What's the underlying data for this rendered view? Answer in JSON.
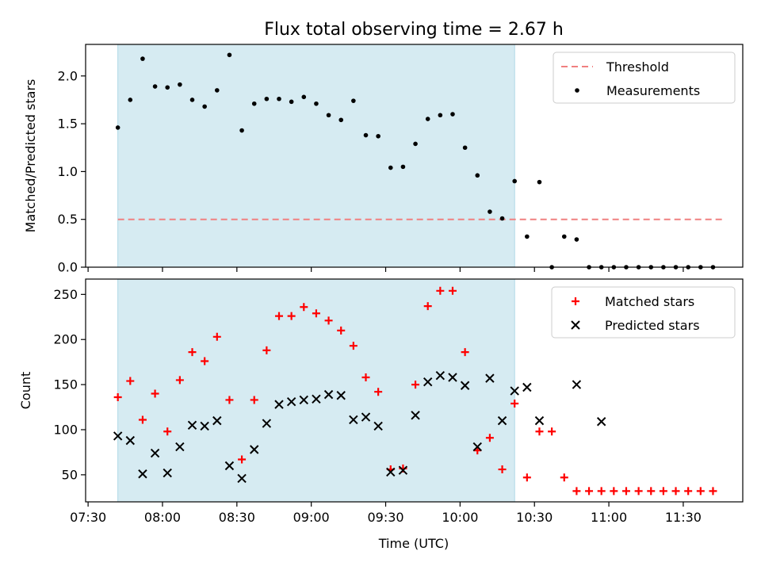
{
  "title": "Flux total observing time = 2.67 h",
  "xlabel": "Time (UTC)",
  "x_ticks": [
    "07:30",
    "08:00",
    "08:30",
    "09:00",
    "09:30",
    "10:00",
    "10:30",
    "11:00",
    "11:30"
  ],
  "colors": {
    "highlight": "#add8e6",
    "threshold": "#f08080",
    "matched": "#ff0000",
    "predicted": "#000000",
    "measurements": "#000000"
  },
  "chart_data": [
    {
      "type": "scatter",
      "name": "ratio-panel",
      "ylabel": "Matched/Predicted stars",
      "ylim": [
        0,
        2.33
      ],
      "y_ticks": [
        0.0,
        0.5,
        1.0,
        1.5,
        2.0
      ],
      "y_tick_labels": [
        "0.0",
        "0.5",
        "1.0",
        "1.5",
        "2.0"
      ],
      "xlim": [
        "07:29",
        "11:54"
      ],
      "highlight_span": [
        "07:42",
        "10:22"
      ],
      "threshold": {
        "name": "Threshold",
        "y": 0.5,
        "x": [
          "07:42",
          "11:46"
        ]
      },
      "series": [
        {
          "name": "Measurements",
          "x": [
            "07:42",
            "07:47",
            "07:52",
            "07:57",
            "08:02",
            "08:07",
            "08:12",
            "08:17",
            "08:22",
            "08:27",
            "08:32",
            "08:37",
            "08:42",
            "08:47",
            "08:52",
            "08:57",
            "09:02",
            "09:07",
            "09:12",
            "09:17",
            "09:22",
            "09:27",
            "09:32",
            "09:37",
            "09:42",
            "09:47",
            "09:52",
            "09:57",
            "10:02",
            "10:07",
            "10:12",
            "10:17",
            "10:22",
            "10:27",
            "10:32",
            "10:37",
            "10:42",
            "10:47",
            "10:52",
            "10:57",
            "11:02",
            "11:07",
            "11:12",
            "11:17",
            "11:22",
            "11:27",
            "11:32",
            "11:37",
            "11:42"
          ],
          "y": [
            1.46,
            1.75,
            2.18,
            1.89,
            1.88,
            1.91,
            1.75,
            1.68,
            1.85,
            2.22,
            1.43,
            1.71,
            1.76,
            1.76,
            1.73,
            1.78,
            1.71,
            1.59,
            1.54,
            1.74,
            1.38,
            1.37,
            1.04,
            1.05,
            1.29,
            1.55,
            1.59,
            1.6,
            1.25,
            0.96,
            0.58,
            0.51,
            0.9,
            0.32,
            0.89,
            0.0,
            0.32,
            0.29,
            0.0,
            0.0,
            0.0,
            0.0,
            0.0,
            0.0,
            0.0,
            0.0,
            0.0,
            0.0,
            0.0
          ]
        }
      ],
      "legend": [
        "Threshold",
        "Measurements"
      ],
      "legend_position": "top-right"
    },
    {
      "type": "scatter",
      "name": "count-panel",
      "ylabel": "Count",
      "ylim": [
        20,
        267
      ],
      "y_ticks": [
        50,
        100,
        150,
        200,
        250
      ],
      "y_tick_labels": [
        "50",
        "100",
        "150",
        "200",
        "250"
      ],
      "xlim": [
        "07:29",
        "11:54"
      ],
      "highlight_span": [
        "07:42",
        "10:22"
      ],
      "series": [
        {
          "name": "Matched stars",
          "x": [
            "07:42",
            "07:47",
            "07:52",
            "07:57",
            "08:02",
            "08:07",
            "08:12",
            "08:17",
            "08:22",
            "08:27",
            "08:32",
            "08:37",
            "08:42",
            "08:47",
            "08:52",
            "08:57",
            "09:02",
            "09:07",
            "09:12",
            "09:17",
            "09:22",
            "09:27",
            "09:32",
            "09:37",
            "09:42",
            "09:47",
            "09:52",
            "09:57",
            "10:02",
            "10:07",
            "10:12",
            "10:17",
            "10:22",
            "10:27",
            "10:32",
            "10:37",
            "10:42",
            "10:47",
            "10:52",
            "10:57",
            "11:02",
            "11:07",
            "11:12",
            "11:17",
            "11:22",
            "11:27",
            "11:32",
            "11:37",
            "11:42"
          ],
          "y": [
            136,
            154,
            111,
            140,
            98,
            155,
            186,
            176,
            203,
            133,
            67,
            133,
            188,
            226,
            226,
            236,
            229,
            221,
            210,
            193,
            158,
            142,
            56,
            57,
            150,
            237,
            254,
            254,
            186,
            77,
            91,
            56,
            129,
            47,
            98,
            98,
            47,
            32,
            32,
            32,
            32,
            32,
            32,
            32,
            32,
            32,
            32,
            32,
            32
          ]
        },
        {
          "name": "Predicted stars",
          "x": [
            "07:42",
            "07:47",
            "07:52",
            "07:57",
            "08:02",
            "08:07",
            "08:12",
            "08:17",
            "08:22",
            "08:27",
            "08:32",
            "08:37",
            "08:42",
            "08:47",
            "08:52",
            "08:57",
            "09:02",
            "09:07",
            "09:12",
            "09:17",
            "09:22",
            "09:27",
            "09:32",
            "09:37",
            "09:42",
            "09:47",
            "09:52",
            "09:57",
            "10:02",
            "10:07",
            "10:12",
            "10:17",
            "10:22",
            "10:27",
            "10:32",
            "10:47",
            "10:57"
          ],
          "y": [
            93,
            88,
            51,
            74,
            52,
            81,
            105,
            104,
            110,
            60,
            46,
            78,
            107,
            128,
            131,
            133,
            134,
            139,
            138,
            111,
            114,
            104,
            53,
            55,
            116,
            153,
            160,
            158,
            149,
            81,
            157,
            110,
            143,
            147,
            110,
            150,
            109
          ]
        }
      ],
      "legend": [
        "Matched stars",
        "Predicted stars"
      ],
      "legend_position": "top-right"
    }
  ]
}
